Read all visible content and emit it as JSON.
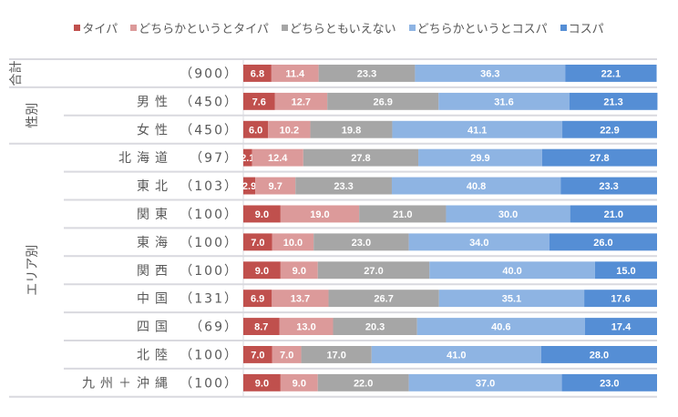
{
  "chart_data": {
    "type": "bar",
    "orientation": "horizontal-stacked-100",
    "legend_position": "top",
    "series": [
      {
        "name": "タイパ",
        "color": "#c0504d",
        "values": [
          6.8,
          7.6,
          6.0,
          2.1,
          2.9,
          9.0,
          7.0,
          9.0,
          6.9,
          8.7,
          7.0,
          9.0
        ]
      },
      {
        "name": "どちらかというとタイパ",
        "color": "#dc9a9a",
        "values": [
          11.4,
          12.7,
          10.2,
          12.4,
          9.7,
          19.0,
          10.0,
          9.0,
          13.7,
          13.0,
          7.0,
          9.0
        ]
      },
      {
        "name": "どちらともいえない",
        "color": "#a6a6a6",
        "values": [
          23.3,
          26.9,
          19.8,
          27.8,
          23.3,
          21.0,
          23.0,
          27.0,
          26.7,
          20.3,
          17.0,
          22.0
        ]
      },
      {
        "name": "どちらかというとコスパ",
        "color": "#8eb4e3",
        "values": [
          36.3,
          31.6,
          41.1,
          29.9,
          40.8,
          30.0,
          34.0,
          40.0,
          35.1,
          40.6,
          41.0,
          37.0
        ]
      },
      {
        "name": "コスパ",
        "color": "#558ed5",
        "values": [
          22.1,
          21.3,
          22.9,
          27.8,
          23.3,
          21.0,
          26.0,
          15.0,
          17.6,
          17.4,
          28.0,
          23.0
        ]
      }
    ],
    "categories": [
      "",
      "男性",
      "女性",
      "北海道",
      "東北",
      "関東",
      "東海",
      "関西",
      "中国",
      "四国",
      "北陸",
      "九州＋沖縄"
    ],
    "n": [
      "（900）",
      "（450）",
      "（450）",
      "（97）",
      "（103）",
      "（100）",
      "（100）",
      "（100）",
      "（131）",
      "（69）",
      "（100）",
      "（100）"
    ],
    "groups": [
      {
        "label": "合計",
        "rows": [
          0
        ]
      },
      {
        "label": "性別",
        "rows": [
          1,
          2
        ]
      },
      {
        "label": "エリア別",
        "rows": [
          3,
          4,
          5,
          6,
          7,
          8,
          9,
          10,
          11
        ]
      }
    ],
    "xlim": [
      0,
      100
    ]
  }
}
